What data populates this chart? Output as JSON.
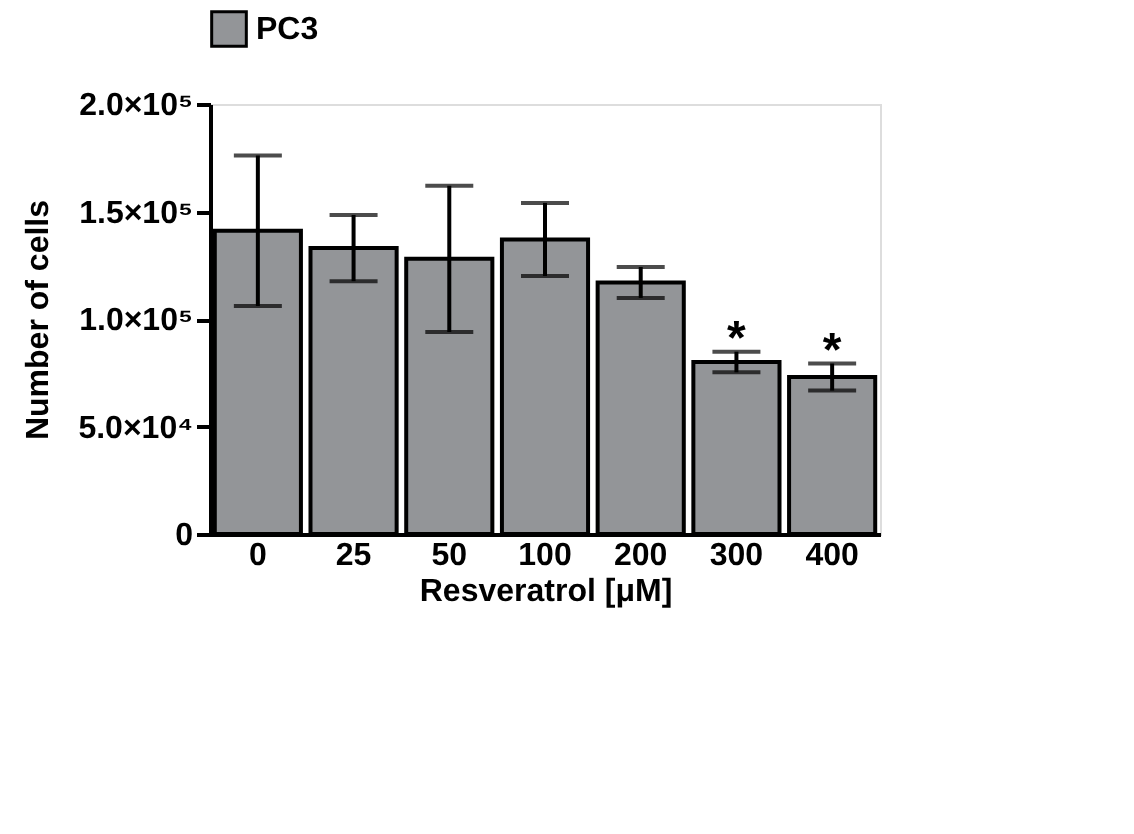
{
  "chart_data": {
    "type": "bar",
    "categories": [
      "0",
      "25",
      "50",
      "100",
      "200",
      "300",
      "400"
    ],
    "series": [
      {
        "name": "PC3",
        "color": "#939598",
        "values": [
          141000,
          133000,
          128000,
          137000,
          117000,
          80000,
          73000
        ],
        "errors": [
          35000,
          15400,
          34000,
          17000,
          7200,
          4800,
          6300
        ]
      }
    ],
    "xlabel": "Resveratrol [μM]",
    "ylabel": "Number of cells",
    "ylim": [
      0,
      200000
    ],
    "yticks": [
      0,
      {
        "value": 50000,
        "label": "5.0×10⁴"
      },
      {
        "value": 100000,
        "label": "1.0×10⁵"
      },
      {
        "value": 150000,
        "label": "1.5×10⁵"
      },
      {
        "value": 200000,
        "label": "2.0×10⁵"
      }
    ],
    "annotations": [
      {
        "text": "*",
        "x": "300",
        "y": 84800
      },
      {
        "text": "*",
        "x": "400",
        "y": 79000
      }
    ],
    "legend": "top left",
    "grid": false
  }
}
